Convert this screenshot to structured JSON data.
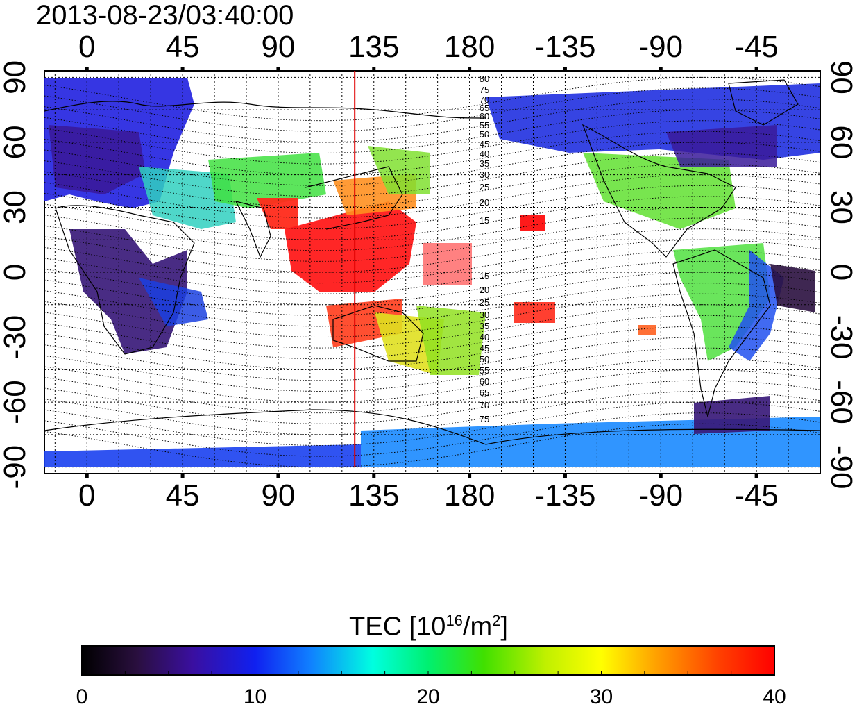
{
  "title": "2013-08-23/03:40:00",
  "map": {
    "x_ticks": [
      "0",
      "45",
      "90",
      "135",
      "180",
      "-135",
      "-90",
      "-45"
    ],
    "x_tick_lons": [
      0,
      45,
      90,
      135,
      180,
      225,
      270,
      315
    ],
    "y_ticks": [
      "90",
      "60",
      "30",
      "0",
      "-30",
      "-60",
      "-90"
    ],
    "y_tick_lats": [
      90,
      60,
      30,
      0,
      -30,
      -60,
      -90
    ],
    "lon_range": [
      -20,
      345
    ],
    "lat_range": [
      -93,
      93
    ],
    "meridian_lon": 126,
    "meridian_color": "#e00000",
    "contour_labels_north": [
      "80",
      "75",
      "70",
      "65",
      "60",
      "55",
      "50",
      "45",
      "40",
      "35",
      "30",
      "25",
      "20",
      "15"
    ],
    "contour_labels_south": [
      "15",
      "20",
      "25",
      "30",
      "35",
      "40",
      "45",
      "50",
      "55",
      "60",
      "65",
      "70",
      "75"
    ]
  },
  "colorbar": {
    "title_prefix": "TEC  [10",
    "title_exp1": "16",
    "title_mid": "/m",
    "title_exp2": "2",
    "title_suffix": "]",
    "min": 0,
    "max": 40,
    "tick_labels": [
      "0",
      "10",
      "20",
      "30",
      "40"
    ],
    "tick_values": [
      0,
      10,
      20,
      30,
      40
    ]
  }
}
